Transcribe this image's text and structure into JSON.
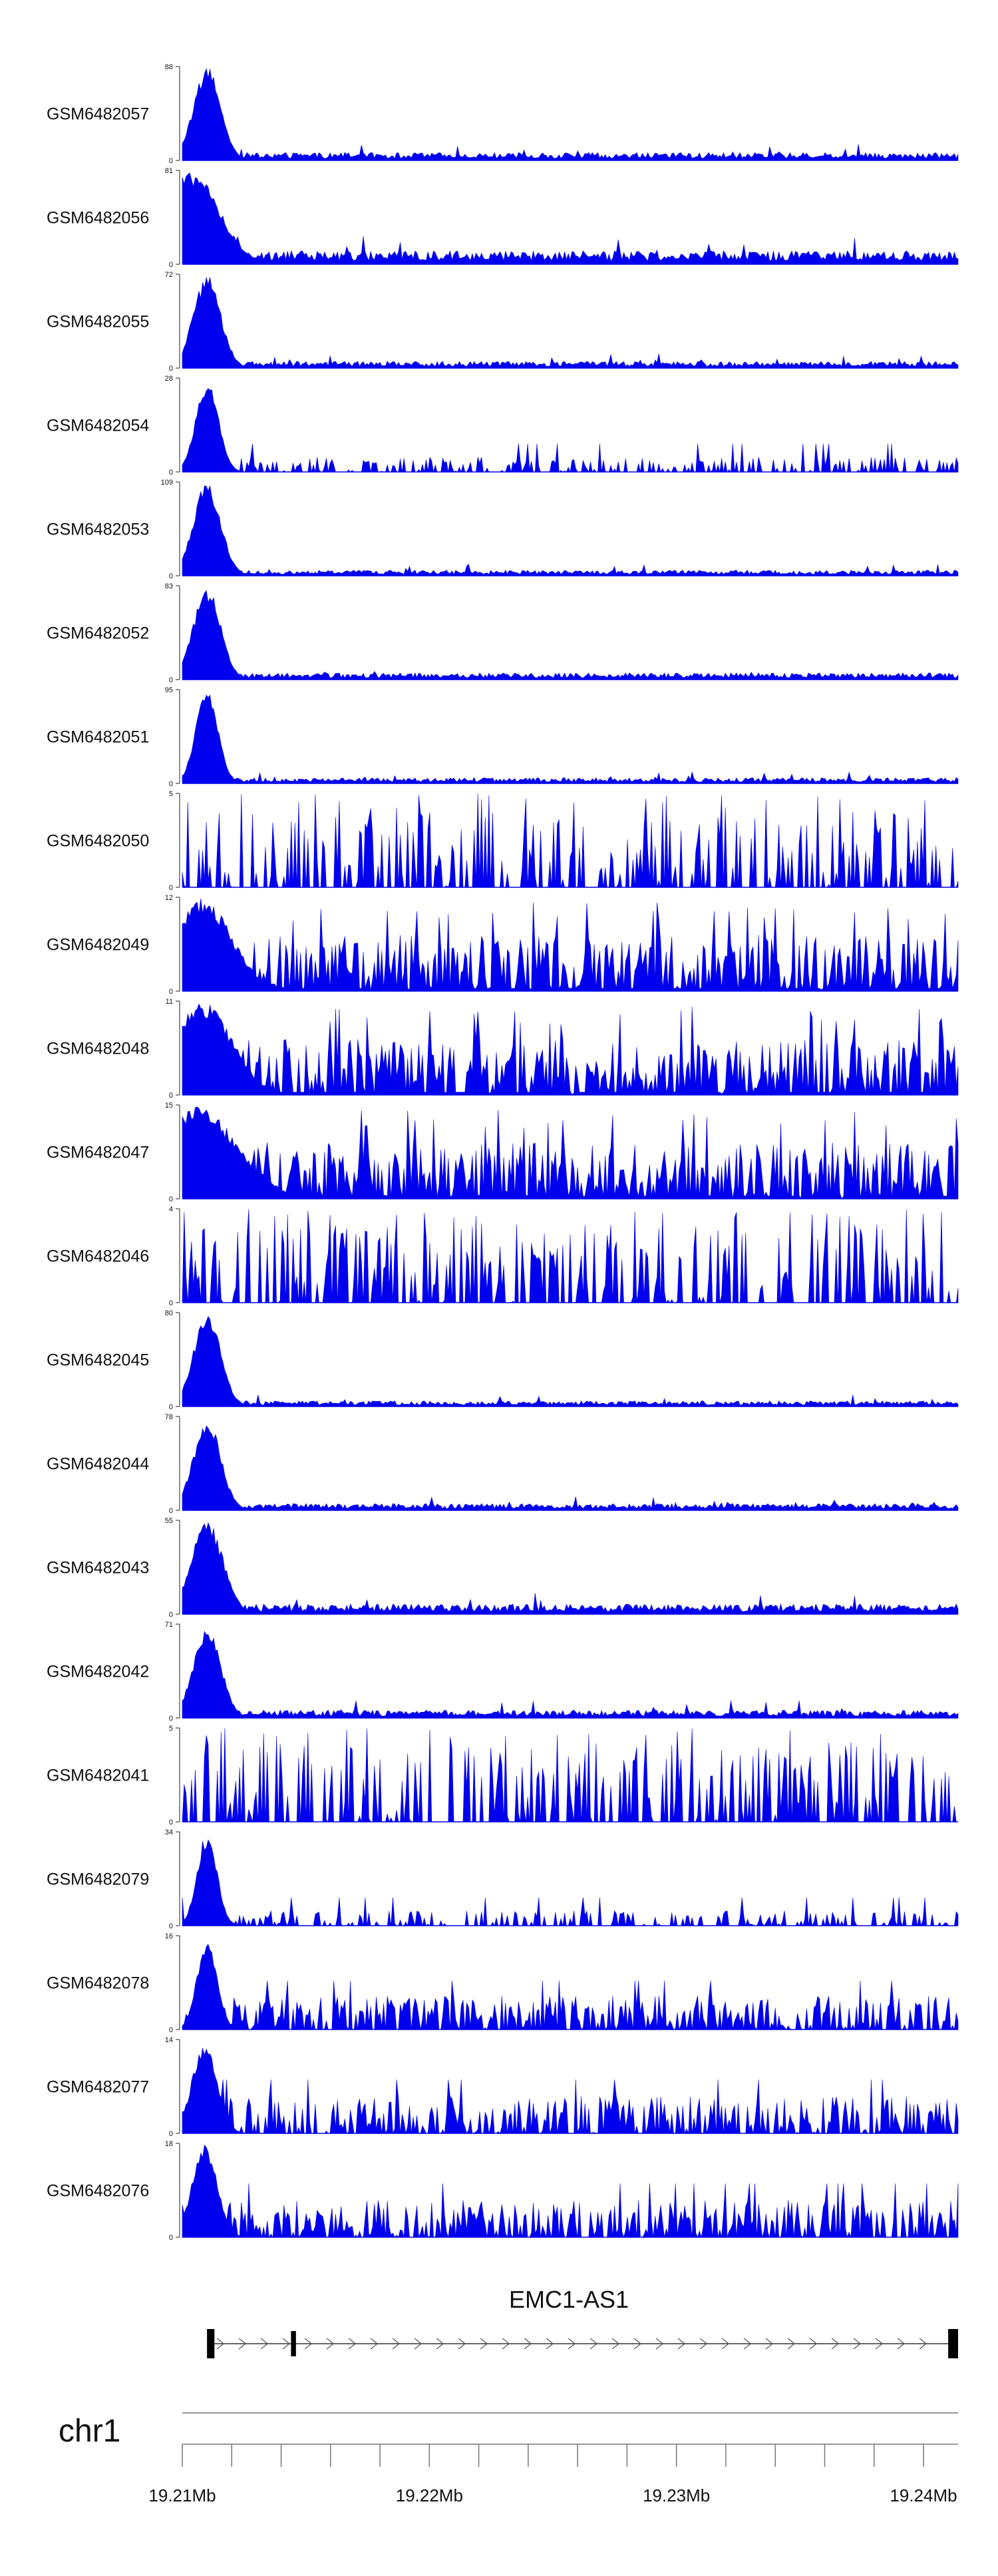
{
  "chart_data": {
    "type": "area",
    "color": "#0000ee",
    "x_range_mb": [
      19.21,
      19.2414
    ],
    "tracks": [
      {
        "name": "GSM6482057",
        "ymax": 88,
        "peak_center": 19.211,
        "peak_width": 0.00055,
        "baseline": 0.07,
        "noise": "low"
      },
      {
        "name": "GSM6482056",
        "ymax": 81,
        "peak_center": 19.2104,
        "peak_width": 0.0011,
        "baseline": 0.12,
        "noise": "low"
      },
      {
        "name": "GSM6482055",
        "ymax": 72,
        "peak_center": 19.211,
        "peak_width": 0.00055,
        "baseline": 0.06,
        "noise": "low"
      },
      {
        "name": "GSM6482054",
        "ymax": 28,
        "peak_center": 19.211,
        "peak_width": 0.00045,
        "baseline": 0.1,
        "noise": "sparse"
      },
      {
        "name": "GSM6482053",
        "ymax": 109,
        "peak_center": 19.211,
        "peak_width": 0.00055,
        "baseline": 0.05,
        "noise": "low"
      },
      {
        "name": "GSM6482052",
        "ymax": 83,
        "peak_center": 19.211,
        "peak_width": 0.00055,
        "baseline": 0.06,
        "noise": "low"
      },
      {
        "name": "GSM6482051",
        "ymax": 95,
        "peak_center": 19.211,
        "peak_width": 0.00045,
        "baseline": 0.05,
        "noise": "low"
      },
      {
        "name": "GSM6482050",
        "ymax": 5,
        "peak_center": null,
        "peak_width": 0,
        "baseline": 0.35,
        "noise": "spiky"
      },
      {
        "name": "GSM6482049",
        "ymax": 12,
        "peak_center": 19.2108,
        "peak_width": 0.0012,
        "baseline": 0.3,
        "noise": "dense"
      },
      {
        "name": "GSM6482048",
        "ymax": 11,
        "peak_center": 19.2108,
        "peak_width": 0.0012,
        "baseline": 0.3,
        "noise": "dense"
      },
      {
        "name": "GSM6482047",
        "ymax": 15,
        "peak_center": 19.2106,
        "peak_width": 0.0016,
        "baseline": 0.3,
        "noise": "dense"
      },
      {
        "name": "GSM6482046",
        "ymax": 4,
        "peak_center": null,
        "peak_width": 0,
        "baseline": 0.4,
        "noise": "spiky"
      },
      {
        "name": "GSM6482045",
        "ymax": 80,
        "peak_center": 19.211,
        "peak_width": 0.00055,
        "baseline": 0.05,
        "noise": "low"
      },
      {
        "name": "GSM6482044",
        "ymax": 78,
        "peak_center": 19.211,
        "peak_width": 0.00055,
        "baseline": 0.06,
        "noise": "low"
      },
      {
        "name": "GSM6482043",
        "ymax": 55,
        "peak_center": 19.211,
        "peak_width": 0.00065,
        "baseline": 0.09,
        "noise": "low"
      },
      {
        "name": "GSM6482042",
        "ymax": 71,
        "peak_center": 19.211,
        "peak_width": 0.00055,
        "baseline": 0.07,
        "noise": "low"
      },
      {
        "name": "GSM6482041",
        "ymax": 5,
        "peak_center": null,
        "peak_width": 0,
        "baseline": 0.35,
        "noise": "spiky"
      },
      {
        "name": "GSM6482079",
        "ymax": 34,
        "peak_center": 19.211,
        "peak_width": 0.0004,
        "baseline": 0.1,
        "noise": "sparse"
      },
      {
        "name": "GSM6482078",
        "ymax": 16,
        "peak_center": 19.211,
        "peak_width": 0.0004,
        "baseline": 0.2,
        "noise": "medium"
      },
      {
        "name": "GSM6482077",
        "ymax": 14,
        "peak_center": 19.2109,
        "peak_width": 0.0005,
        "baseline": 0.22,
        "noise": "medium"
      },
      {
        "name": "GSM6482076",
        "ymax": 18,
        "peak_center": 19.2109,
        "peak_width": 0.0005,
        "baseline": 0.22,
        "noise": "medium"
      }
    ],
    "gene": {
      "name": "EMC1-AS1",
      "start_mb": 19.211,
      "end_mb": 19.2414,
      "strand": "+",
      "exons_mb": [
        [
          19.211,
          19.2113
        ],
        [
          19.2144,
          19.2146
        ],
        [
          19.241,
          19.2414
        ]
      ]
    },
    "chromosome": "chr1",
    "axis": {
      "ticks_mb": [
        19.21,
        19.212,
        19.214,
        19.216,
        19.218,
        19.22,
        19.222,
        19.224,
        19.226,
        19.228,
        19.23,
        19.232,
        19.234,
        19.236,
        19.238,
        19.24
      ],
      "labeled_ticks": [
        {
          "value": 19.21,
          "label": "19.21Mb"
        },
        {
          "value": 19.22,
          "label": "19.22Mb"
        },
        {
          "value": 19.23,
          "label": "19.23Mb"
        },
        {
          "value": 19.24,
          "label": "19.24Mb"
        }
      ]
    }
  }
}
